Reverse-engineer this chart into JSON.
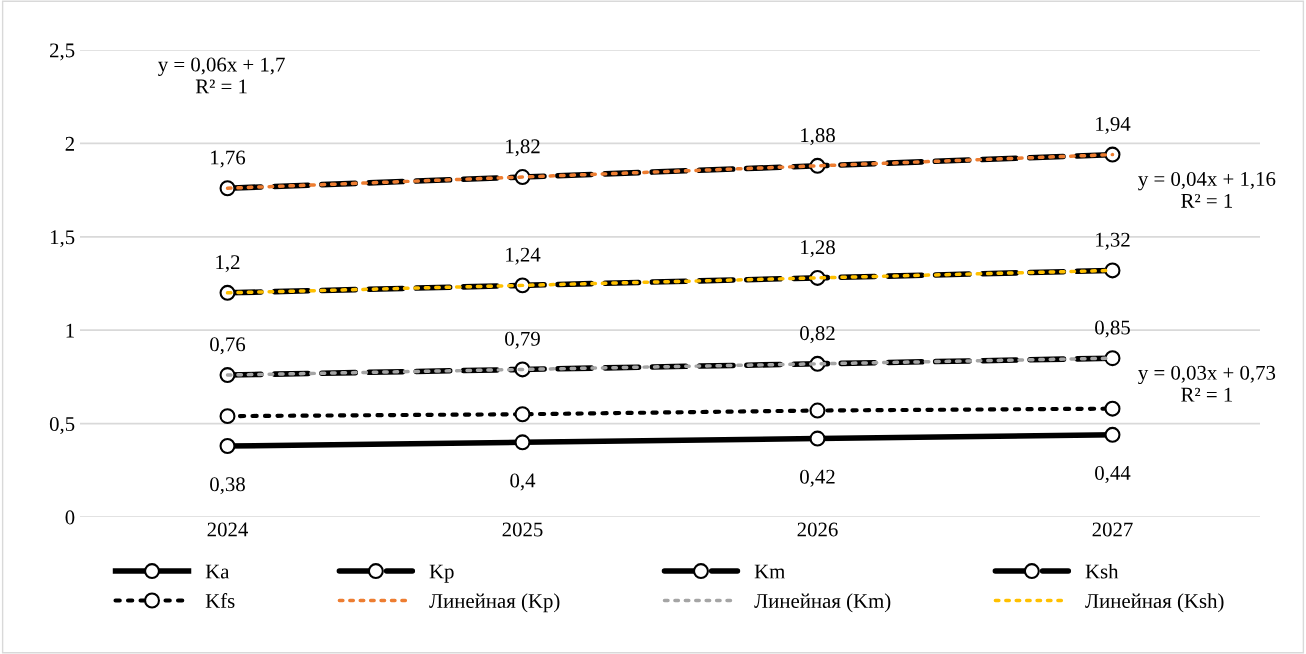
{
  "chart_data": {
    "type": "line",
    "categories": [
      "2024",
      "2025",
      "2026",
      "2027"
    ],
    "series": [
      {
        "name": "Ka",
        "color": "#000000",
        "values": [
          0.38,
          0.4,
          0.42,
          0.44
        ],
        "value_labels": [
          "0,38",
          "0,4",
          "0,42",
          "0,44"
        ],
        "line_style": "solid",
        "marker": "circle"
      },
      {
        "name": "Kp",
        "color": "#000000",
        "values": [
          1.76,
          1.82,
          1.88,
          1.94
        ],
        "value_labels": [
          "1,76",
          "1,82",
          "1,88",
          "1,94"
        ],
        "line_style": "dashed",
        "marker": "circle"
      },
      {
        "name": "Km",
        "color": "#000000",
        "values": [
          0.76,
          0.79,
          0.82,
          0.85
        ],
        "value_labels": [
          "0,76",
          "0,79",
          "0,82",
          "0,85"
        ],
        "line_style": "dashed",
        "marker": "circle"
      },
      {
        "name": "Ksh",
        "color": "#000000",
        "values": [
          1.2,
          1.24,
          1.28,
          1.32
        ],
        "value_labels": [
          "1,2",
          "1,24",
          "1,28",
          "1,32"
        ],
        "line_style": "dashed",
        "marker": "circle"
      },
      {
        "name": "Kfs",
        "color": "#000000",
        "values": [
          0.54,
          0.55,
          0.57,
          0.58
        ],
        "line_style": "dotted",
        "marker": "circle"
      },
      {
        "name": "Линейная (Kp)",
        "color": "#ed7d31",
        "values": [
          1.76,
          1.82,
          1.88,
          1.94
        ],
        "line_style": "dotted",
        "marker": "none"
      },
      {
        "name": "Линейная (Km)",
        "color": "#a5a5a5",
        "values": [
          0.76,
          0.79,
          0.82,
          0.85
        ],
        "line_style": "dotted",
        "marker": "none"
      },
      {
        "name": "Линейная (Ksh)",
        "color": "#ffc000",
        "values": [
          1.2,
          1.24,
          1.28,
          1.32
        ],
        "line_style": "dotted",
        "marker": "none"
      }
    ],
    "ylim": [
      0,
      2.5
    ],
    "yticks": [
      0,
      {
        "value": 0.5,
        "label": "0,5"
      },
      1,
      {
        "value": 1.5,
        "label": "1,5"
      },
      2,
      {
        "value": 2.5,
        "label": "2,5"
      }
    ],
    "grid": "y",
    "legend": "bottom",
    "annotations": [
      "y = 0,06x + 1,7\nR² = 1",
      "y = 0,04x + 1,16\nR² = 1",
      "y = 0,03x + 0,73\nR² = 1"
    ]
  }
}
